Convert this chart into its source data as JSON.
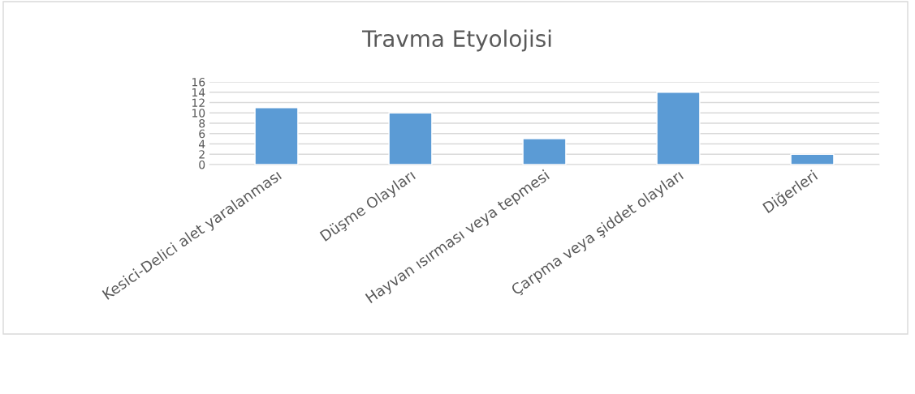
{
  "chart_data": {
    "type": "bar",
    "title": "Travma Etyolojisi",
    "categories": [
      "Kesici-Delici alet yaralanması",
      "Düşme Olayları",
      "Hayvan ısırması veya tepmesi",
      "Çarpma veya şiddet olayları",
      "Diğerleri"
    ],
    "values": [
      11,
      10,
      5,
      14,
      2
    ],
    "color": "#5b9bd5",
    "ylim": [
      0,
      16
    ],
    "yticks": [
      0,
      2,
      4,
      6,
      8,
      10,
      12,
      14,
      16
    ],
    "grid": "y"
  }
}
